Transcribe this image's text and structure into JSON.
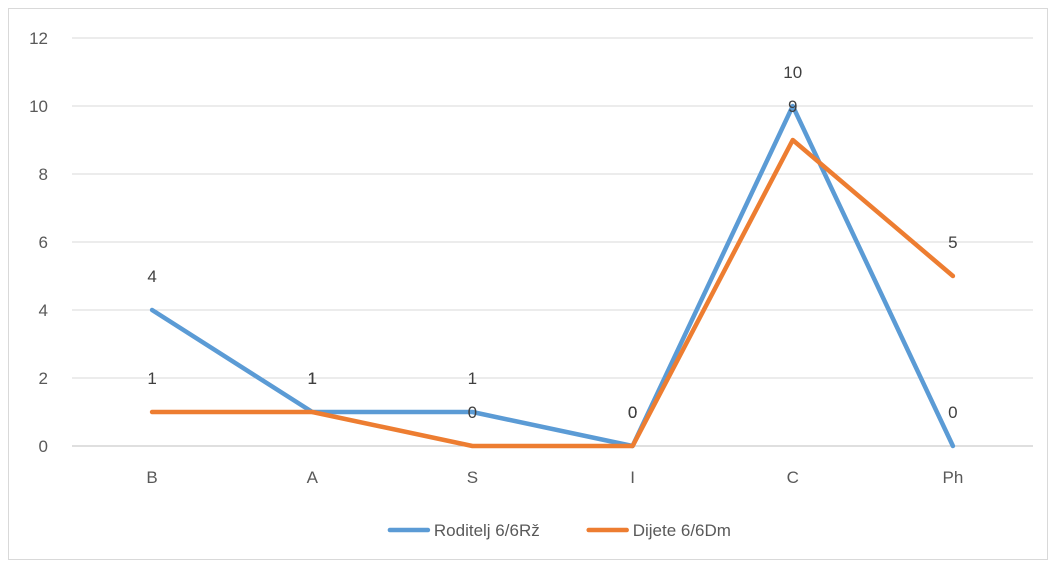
{
  "chart_data": {
    "type": "line",
    "title": "",
    "xlabel": "",
    "ylabel": "",
    "categories": [
      "B",
      "A",
      "S",
      "I",
      "C",
      "Ph"
    ],
    "ylim": [
      0,
      12
    ],
    "yticks": [
      0,
      2,
      4,
      6,
      8,
      10,
      12
    ],
    "grid": true,
    "legend_position": "bottom",
    "data_labels": true,
    "series": [
      {
        "name": "Roditelj 6/6Rž",
        "values": [
          4,
          1,
          1,
          0,
          10,
          0
        ],
        "color": "#5b9bd5"
      },
      {
        "name": "Dijete 6/6Dm",
        "values": [
          1,
          1,
          0,
          0,
          9,
          5
        ],
        "color": "#ed7d31"
      }
    ]
  }
}
